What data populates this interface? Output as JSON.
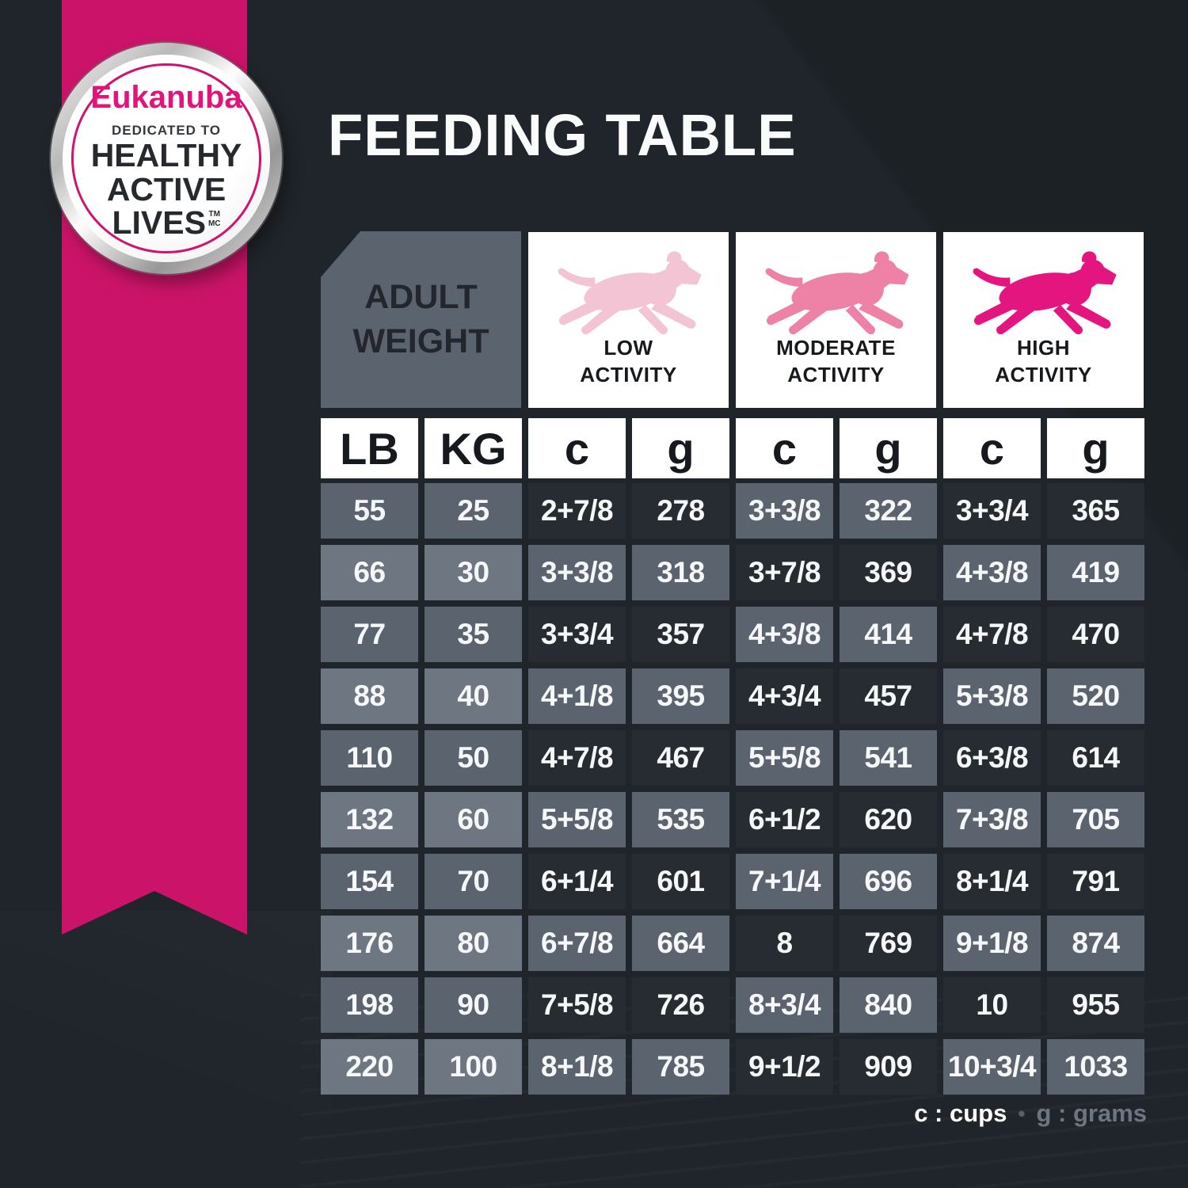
{
  "badge": {
    "brand": "Eukanuba",
    "dedicated": "DEDICATED TO",
    "line1": "HEALTHY",
    "line2": "ACTIVE",
    "line3": "LIVES",
    "tm": "TM",
    "mc": "MC"
  },
  "title": "FEEDING TABLE",
  "table": {
    "corner_header": {
      "line1": "ADULT",
      "line2": "WEIGHT"
    },
    "activity_headers": [
      {
        "label_line1": "LOW",
        "label_line2": "ACTIVITY",
        "icon": "running-dog-icon",
        "dog_color": "#f2c4d4"
      },
      {
        "label_line1": "MODERATE",
        "label_line2": "ACTIVITY",
        "icon": "running-dog-icon",
        "dog_color": "#ee81a6"
      },
      {
        "label_line1": "HIGH",
        "label_line2": "ACTIVITY",
        "icon": "running-dog-icon",
        "dog_color": "#e5157f"
      }
    ],
    "unit_headers": [
      "LB",
      "KG",
      "c",
      "g",
      "c",
      "g",
      "c",
      "g"
    ],
    "rows": [
      [
        "55",
        "25",
        "2+7/8",
        "278",
        "3+3/8",
        "322",
        "3+3/4",
        "365"
      ],
      [
        "66",
        "30",
        "3+3/8",
        "318",
        "3+7/8",
        "369",
        "4+3/8",
        "419"
      ],
      [
        "77",
        "35",
        "3+3/4",
        "357",
        "4+3/8",
        "414",
        "4+7/8",
        "470"
      ],
      [
        "88",
        "40",
        "4+1/8",
        "395",
        "4+3/4",
        "457",
        "5+3/8",
        "520"
      ],
      [
        "110",
        "50",
        "4+7/8",
        "467",
        "5+5/8",
        "541",
        "6+3/8",
        "614"
      ],
      [
        "132",
        "60",
        "5+5/8",
        "535",
        "6+1/2",
        "620",
        "7+3/8",
        "705"
      ],
      [
        "154",
        "70",
        "6+1/4",
        "601",
        "7+1/4",
        "696",
        "8+1/4",
        "791"
      ],
      [
        "176",
        "80",
        "6+7/8",
        "664",
        "8",
        "769",
        "9+1/8",
        "874"
      ],
      [
        "198",
        "90",
        "7+5/8",
        "726",
        "8+3/4",
        "840",
        "10",
        "955"
      ],
      [
        "220",
        "100",
        "8+1/8",
        "785",
        "9+1/2",
        "909",
        "10+3/4",
        "1033"
      ]
    ]
  },
  "legend": {
    "cups": "c : cups",
    "separator": "•",
    "grams": "g : grams"
  },
  "colors": {
    "background": "#20252b",
    "ribbon_pink": "#cb1469",
    "brand_pink": "#e3137c",
    "cell_dark": "#272c33",
    "cell_gray": "#5b646e",
    "cell_gray_light": "#6e7781",
    "header_white": "#ffffff",
    "dog_low": "#f2c4d4",
    "dog_moderate": "#ee81a6",
    "dog_high": "#e5157f"
  }
}
